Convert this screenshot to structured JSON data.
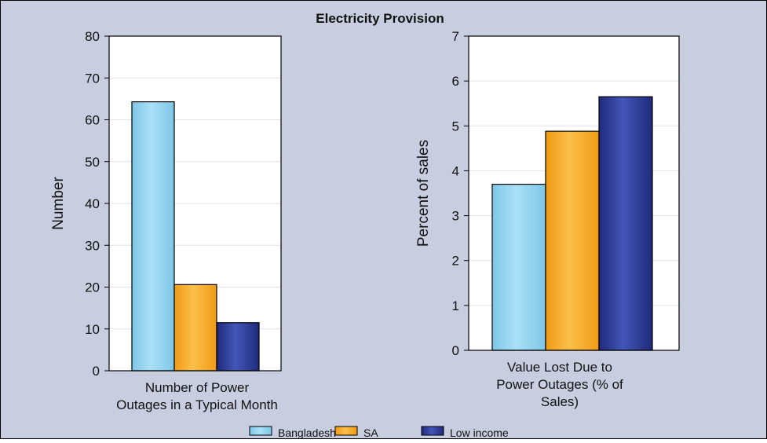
{
  "title": "Electricity Provision",
  "colors": {
    "background": "#c9cde0",
    "plot_background": "#ffffff",
    "border": "#000000",
    "gridline": "#e2e3ea"
  },
  "legend": {
    "placement": "bottom",
    "items": [
      {
        "name": "Bangladesh",
        "color": "#87ceeb"
      },
      {
        "name": "SA",
        "color": "#f5a31a"
      },
      {
        "name": "Low income",
        "color": "#2e3d99"
      }
    ]
  },
  "chart_data": [
    {
      "type": "bar",
      "categories": [
        "Number of Power Outages in a Typical Month"
      ],
      "category_label_lines": [
        "Number of Power",
        "Outages in a Typical Month"
      ],
      "ylabel": "Number",
      "ylim": [
        0,
        80
      ],
      "yticks": [
        "0",
        "10",
        "20",
        "30",
        "40",
        "50",
        "60",
        "70",
        "80"
      ],
      "grid": true,
      "series": [
        {
          "name": "Bangladesh",
          "values": [
            64.3
          ]
        },
        {
          "name": "SA",
          "values": [
            20.6
          ]
        },
        {
          "name": "Low income",
          "values": [
            11.5
          ]
        }
      ]
    },
    {
      "type": "bar",
      "categories": [
        "Value Lost Due to Power Outages (% of Sales)"
      ],
      "category_label_lines": [
        "Value Lost Due to",
        "Power Outages (% of",
        "Sales)"
      ],
      "ylabel": "Percent of sales",
      "ylim": [
        0,
        7
      ],
      "yticks": [
        "0",
        "1",
        "2",
        "3",
        "4",
        "5",
        "6",
        "7"
      ],
      "grid": true,
      "series": [
        {
          "name": "Bangladesh",
          "values": [
            3.7
          ]
        },
        {
          "name": "SA",
          "values": [
            4.88
          ]
        },
        {
          "name": "Low income",
          "values": [
            5.65
          ]
        }
      ]
    }
  ]
}
